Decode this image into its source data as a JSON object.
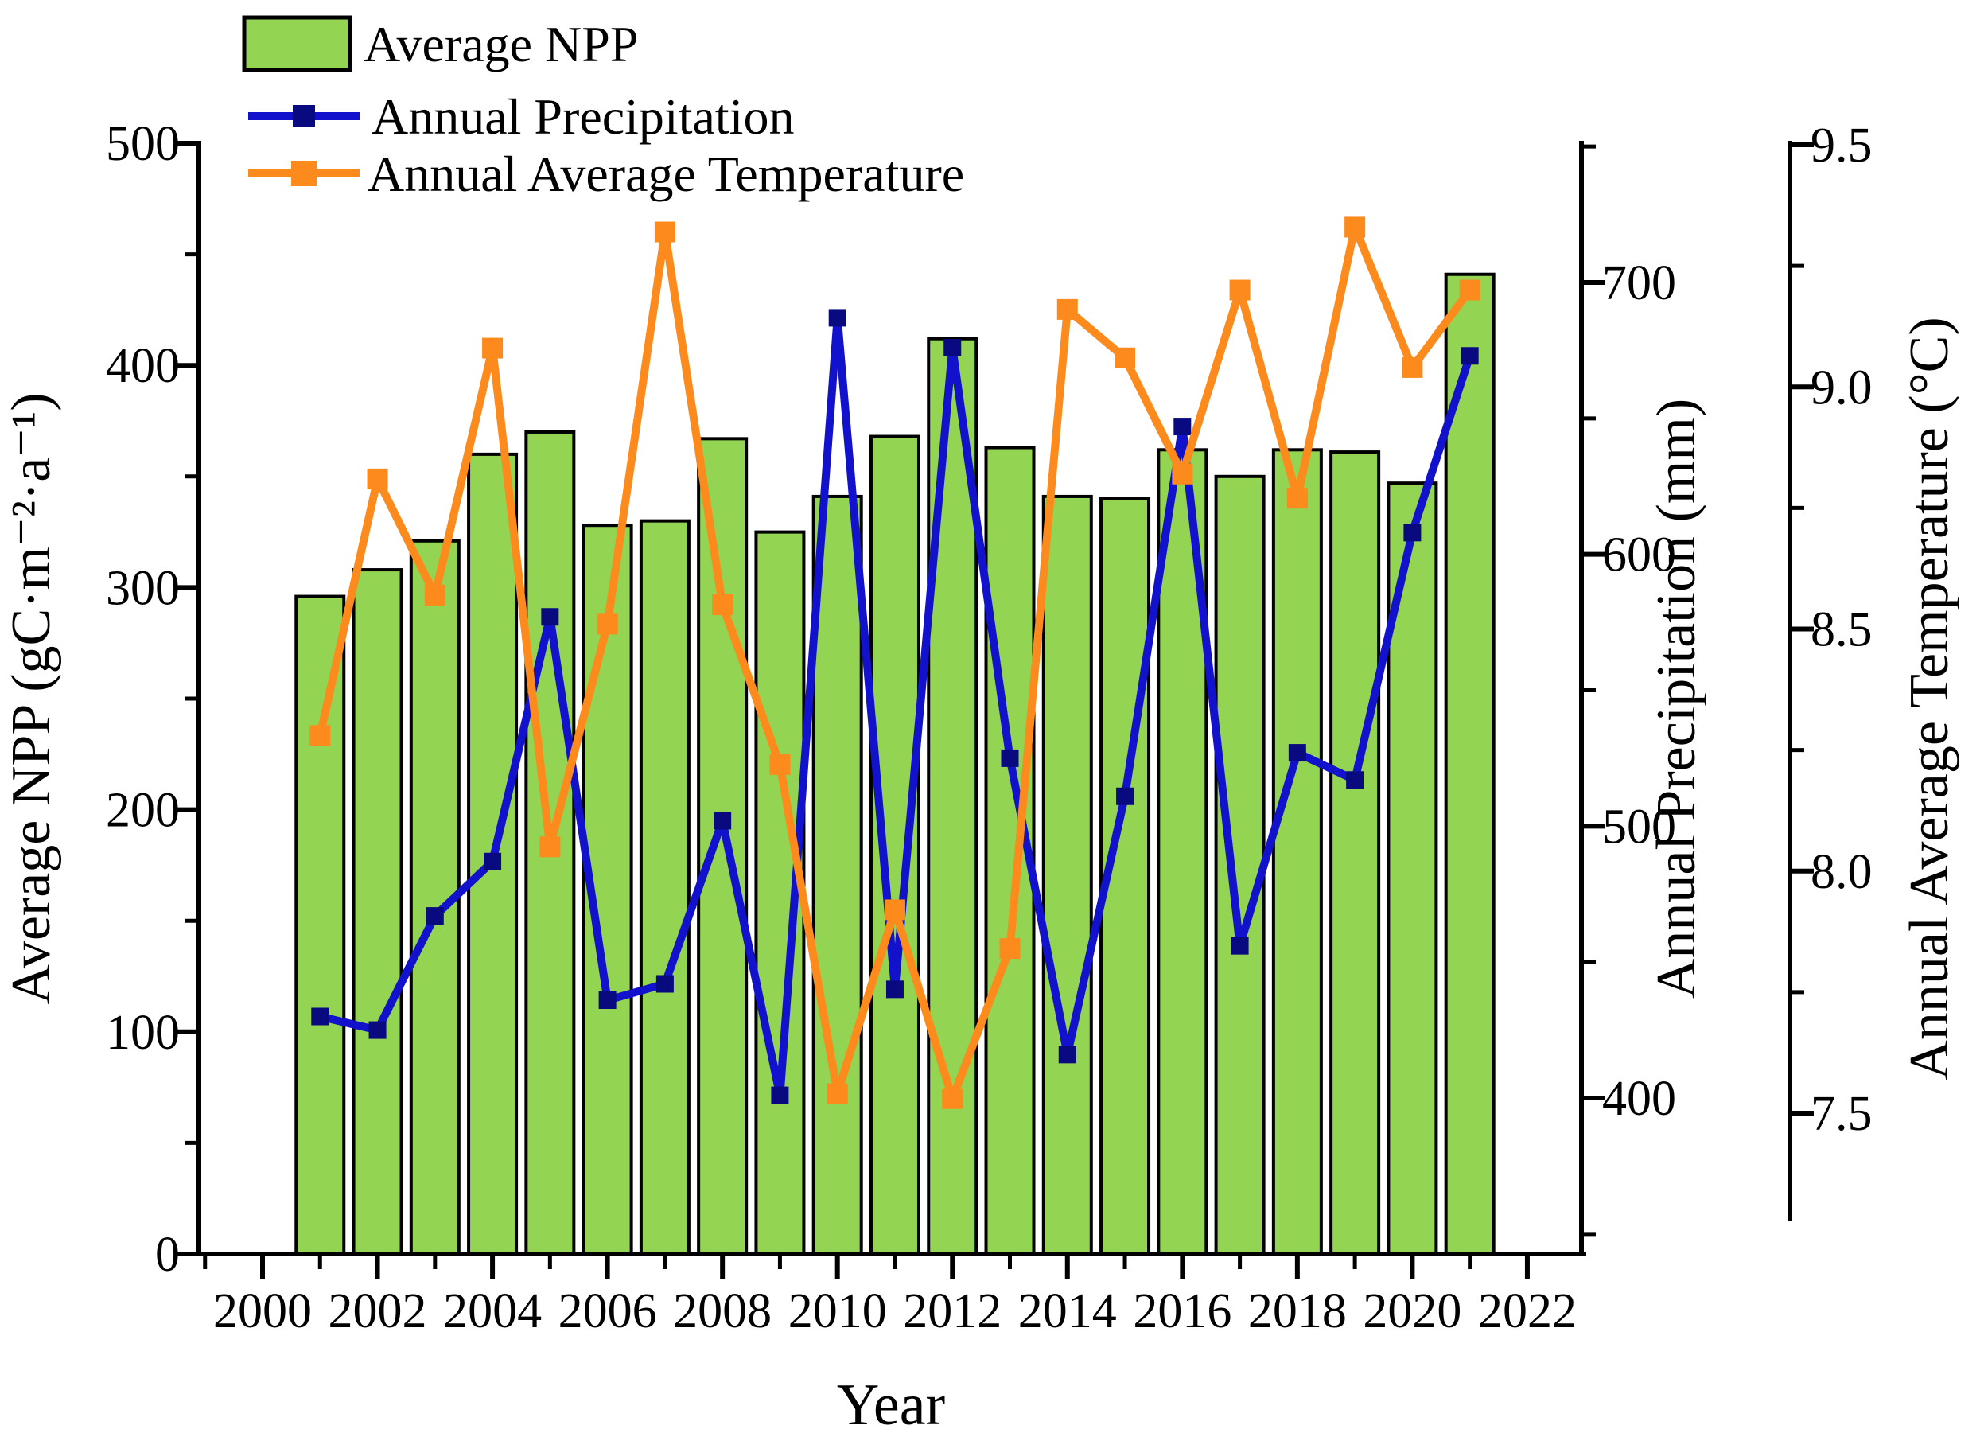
{
  "figure": {
    "background": "#ffffff"
  },
  "legend": {
    "items": [
      {
        "label": "Average NPP",
        "type": "bar-swatch"
      },
      {
        "label": "Annual Precipitation",
        "type": "line-marker"
      },
      {
        "label": "Annual Average Temperature",
        "type": "line-marker"
      }
    ]
  },
  "axes": {
    "left": {
      "title": "Average NPP (gC·m⁻²·a⁻¹)",
      "range": [
        0,
        500
      ],
      "major_ticks": [
        0,
        100,
        200,
        300,
        400,
        500
      ],
      "tick_labels": [
        "0",
        "100",
        "200",
        "300",
        "400",
        "500"
      ]
    },
    "bottom": {
      "title": "Year",
      "major_ticks": [
        2000,
        2002,
        2004,
        2006,
        2008,
        2010,
        2012,
        2014,
        2016,
        2018,
        2020,
        2022
      ],
      "tick_labels": [
        "2000",
        "2002",
        "2004",
        "2006",
        "2008",
        "2010",
        "2012",
        "2014",
        "2016",
        "2018",
        "2020",
        "2022"
      ],
      "minor_ticks": [
        1999,
        2001,
        2003,
        2005,
        2007,
        2009,
        2011,
        2013,
        2015,
        2017,
        2019,
        2021,
        2023
      ]
    },
    "right_precipitation": {
      "title": "Annual Precipitation (mm)",
      "major_ticks": [
        400,
        500,
        600,
        700
      ],
      "tick_labels": [
        "400",
        "500",
        "600",
        "700"
      ],
      "minor_ticks": [
        350,
        450,
        550,
        650,
        750
      ]
    },
    "right_temperature": {
      "title": "Annual Average Temperature (°C)",
      "major_ticks": [
        7.5,
        8.0,
        8.5,
        9.0,
        9.5
      ],
      "tick_labels": [
        "7.5",
        "8.0",
        "8.5",
        "9.0",
        "9.5"
      ],
      "minor_ticks": [
        7.75,
        8.25,
        8.75,
        9.25
      ]
    }
  },
  "colors": {
    "bar_fill": "#93D452",
    "bar_stroke": "#000000",
    "precip_line": "#1212CC",
    "precip_marker": "#0A0A80",
    "temp_line": "#FC8A1C",
    "temp_marker": "#FC8A1C",
    "axis": "#000000"
  },
  "chart_data": {
    "type": "bar",
    "subtype": "bar+line+line composite, dual right axes",
    "title": "",
    "xlabel": "Year",
    "categories": [
      2001,
      2002,
      2003,
      2004,
      2005,
      2006,
      2007,
      2008,
      2009,
      2010,
      2011,
      2012,
      2013,
      2014,
      2015,
      2016,
      2017,
      2018,
      2019,
      2020,
      2021
    ],
    "series": [
      {
        "name": "Average NPP",
        "type": "bar",
        "axis": "left",
        "ylabel": "Average NPP (gC·m⁻²·a⁻¹)",
        "ylim": [
          0,
          500
        ],
        "values": [
          296,
          308,
          321,
          360,
          370,
          328,
          330,
          367,
          325,
          341,
          368,
          412,
          363,
          341,
          340,
          362,
          350,
          362,
          361,
          347,
          441
        ]
      },
      {
        "name": "Annual Precipitation",
        "type": "line",
        "axis": "right1",
        "ylabel": "Annual Precipitation (mm)",
        "ylim_ticks": [
          400,
          700
        ],
        "values": [
          430,
          425,
          467,
          487,
          577,
          436,
          442,
          502,
          401,
          687,
          440,
          676,
          525,
          416,
          511,
          647,
          456,
          527,
          517,
          608,
          673
        ]
      },
      {
        "name": "Annual Average Temperature",
        "type": "line",
        "axis": "right2",
        "ylabel": "Annual Average Temperature (°C)",
        "ylim_ticks": [
          7.5,
          9.5
        ],
        "values": [
          8.28,
          8.81,
          8.57,
          9.08,
          8.05,
          8.51,
          9.32,
          8.55,
          8.22,
          7.54,
          7.92,
          7.53,
          7.84,
          9.16,
          9.06,
          8.82,
          9.2,
          8.77,
          9.33,
          9.04,
          9.2
        ]
      }
    ],
    "legend_position": "top-left",
    "grid": false
  }
}
